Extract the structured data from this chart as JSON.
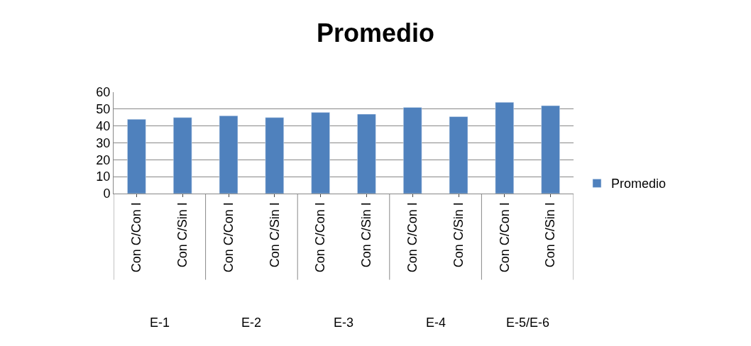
{
  "chart_data": {
    "type": "bar",
    "title": "Promedio",
    "categories": [
      "Con C/Con I",
      "Con C/Sin I",
      "Con C/Con I",
      "Con C/Sin I",
      "Con C/Con I",
      "Con C/Sin I",
      "Con C/Con I",
      "Con C/Sin I",
      "Con C/Con I",
      "Con C/Sin I"
    ],
    "series": [
      {
        "name": "Promedio",
        "color": "#4f81bd",
        "values": [
          44,
          45,
          46,
          45,
          48,
          47,
          51,
          45.5,
          54,
          52
        ]
      }
    ],
    "annotations": [
      "E-1",
      "E-2",
      "E-3",
      "E-4",
      "E-5/E-6"
    ],
    "ylim": [
      0,
      60
    ],
    "yticks": [
      0,
      10,
      20,
      30,
      40,
      50,
      60
    ],
    "grid": "y",
    "legend": "right"
  }
}
